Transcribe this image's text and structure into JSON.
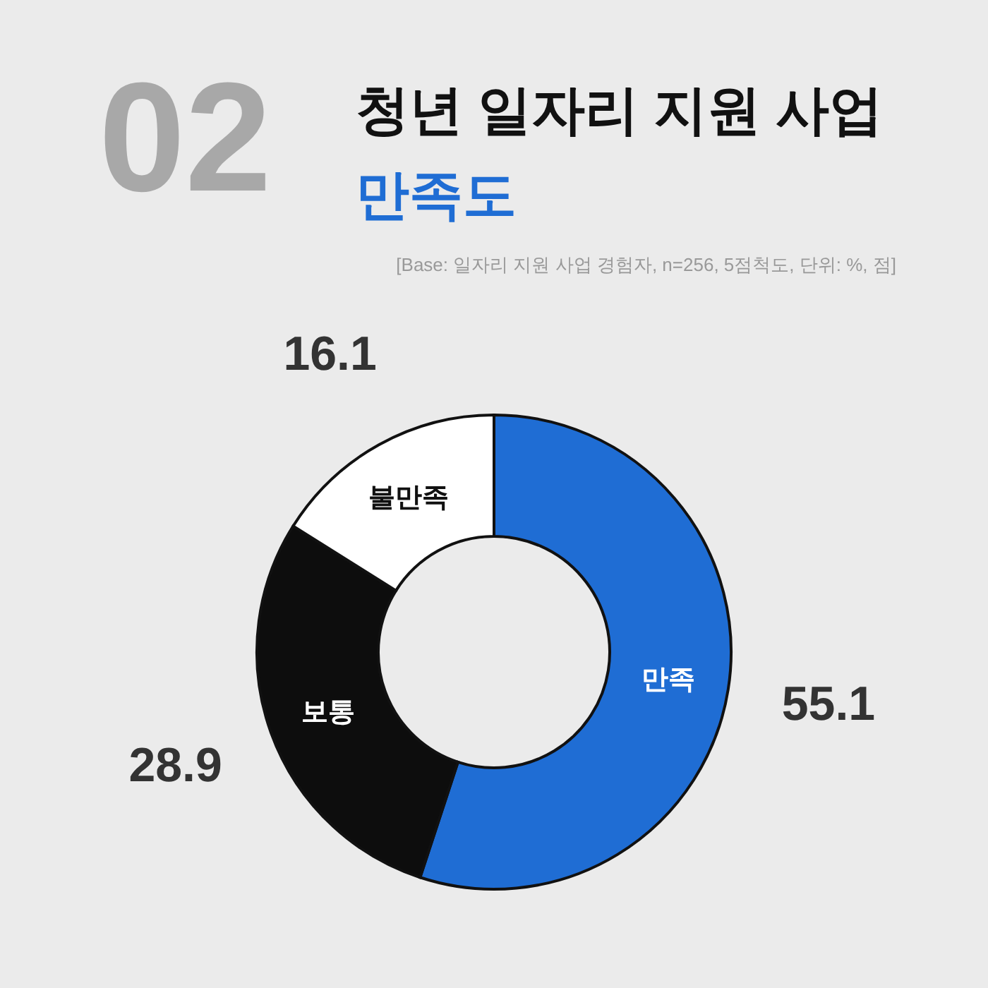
{
  "chart_data": {
    "type": "donut",
    "title": "청년 일자리 지원 사업",
    "subtitle": "만족도",
    "annotations": [
      "02",
      "[Base: 일자리 지원 사업 경험자, n=256, 5점척도, 단위: %, 점]"
    ],
    "categories": [
      "만족",
      "보통",
      "불만족"
    ],
    "values": [
      55.1,
      28.9,
      16.1
    ],
    "colors": [
      "#1f6dd4",
      "#0d0d0d",
      "#ffffff"
    ],
    "data_labels": true
  }
}
